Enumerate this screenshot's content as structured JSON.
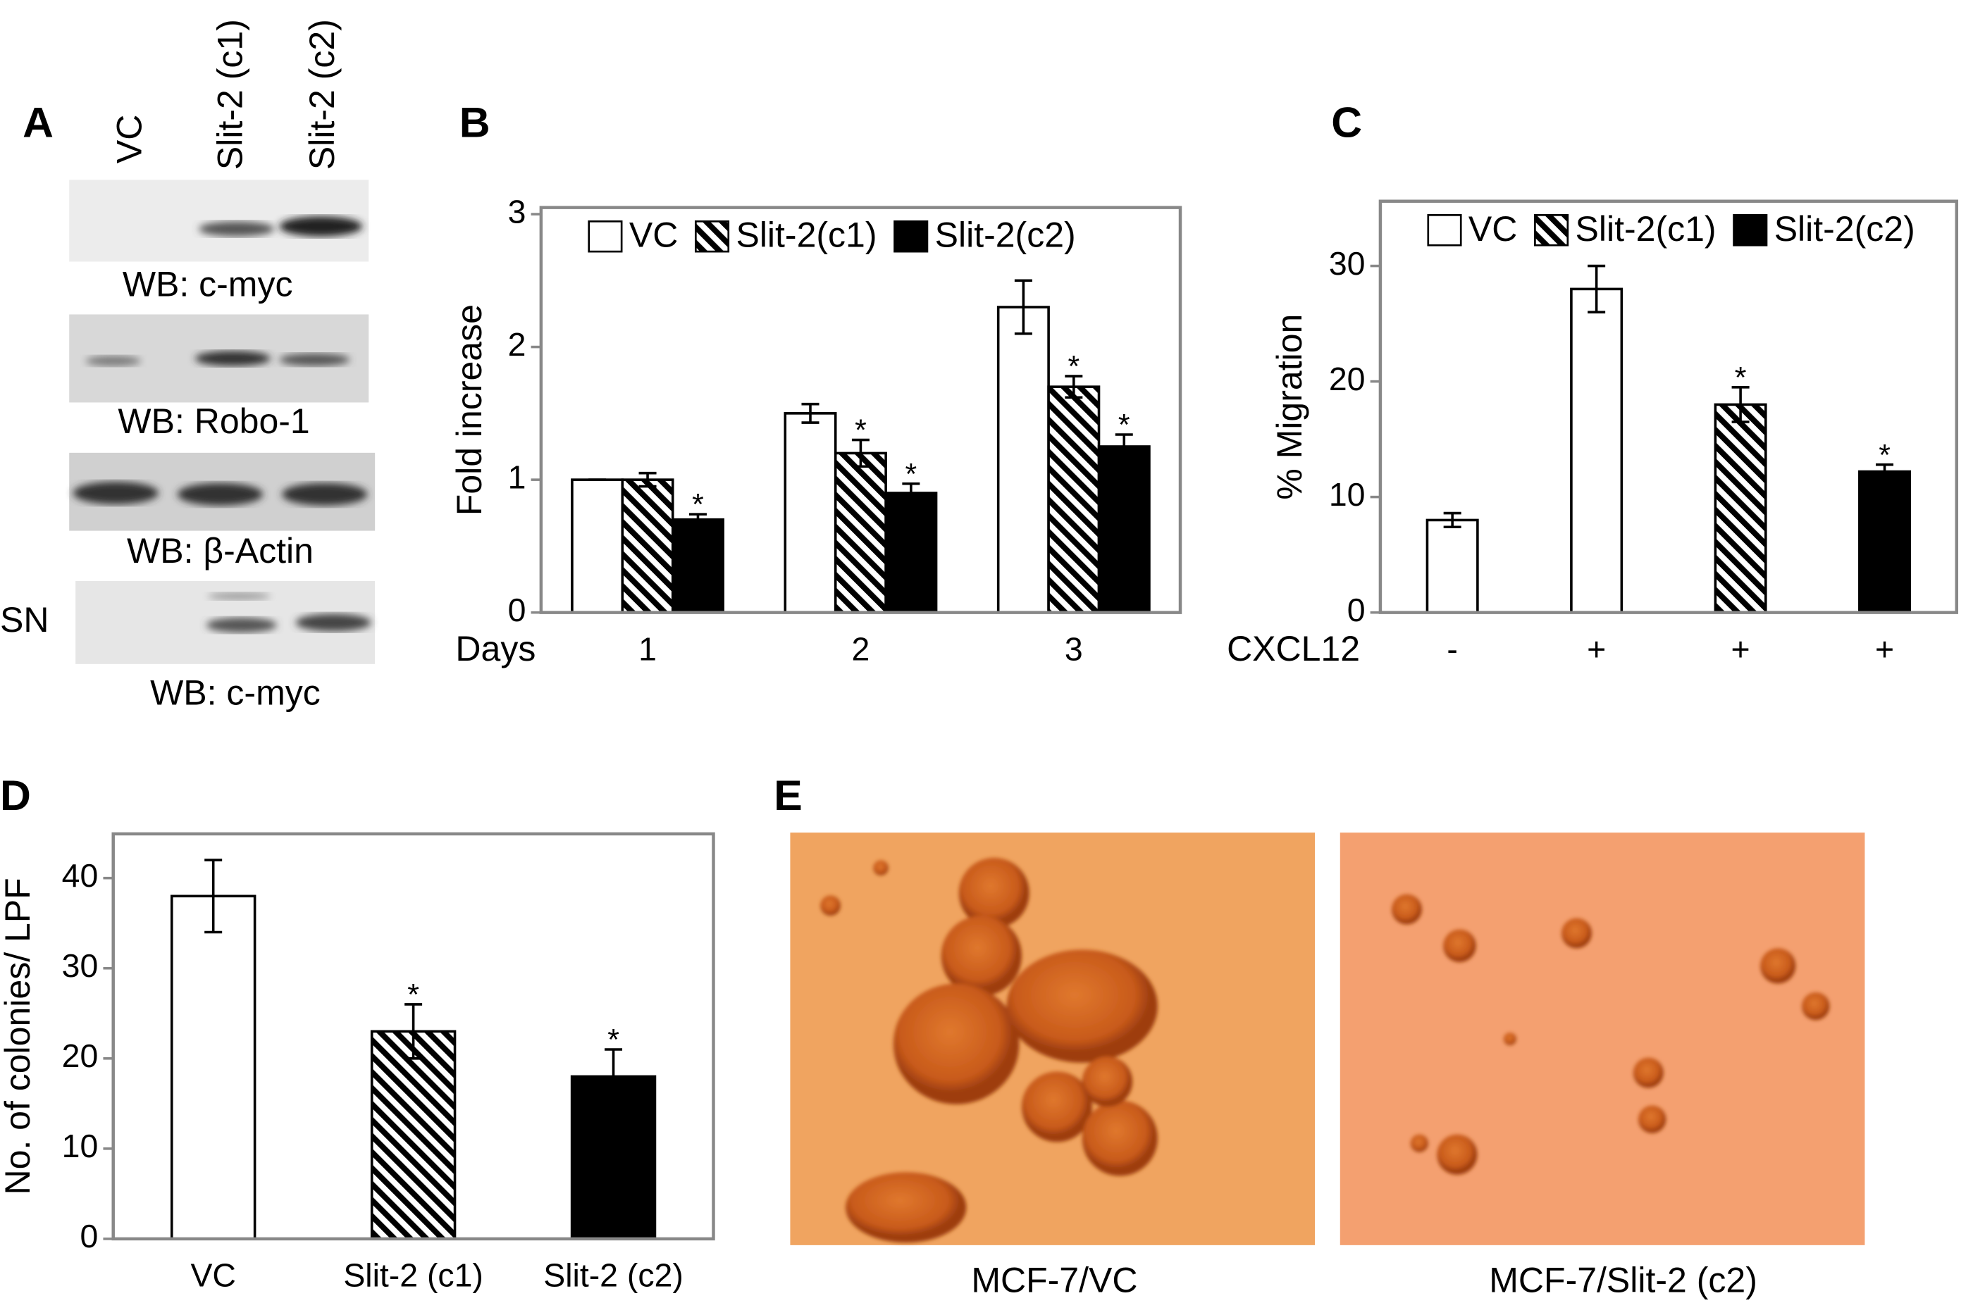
{
  "panel_labels": [
    "A",
    "B",
    "C",
    "D",
    "E"
  ],
  "blots": {
    "lanes": [
      "VC",
      "Slit-2 (c1)",
      "Slit-2 (c2)"
    ],
    "row_label": "SN",
    "captions": [
      "WB: c-myc",
      "WB: Robo-1",
      "WB: β-Actin",
      "WB: c-myc"
    ]
  },
  "photos": {
    "captions": [
      "MCF-7/VC",
      "MCF-7/Slit-2 (c2)"
    ]
  },
  "chart_data": [
    {
      "type": "bar",
      "ylabel": "Fold increase",
      "xlabel": "Days",
      "categories": [
        "1",
        "2",
        "3"
      ],
      "ylim": [
        0,
        3.05
      ],
      "yticks": [
        0,
        1,
        2,
        3
      ],
      "legend": "top",
      "series": [
        {
          "name": "VC",
          "color": "#ffffff",
          "pattern": "solid",
          "values": [
            1,
            1.5,
            2.3
          ],
          "errors": [
            0,
            0.07,
            0.2
          ]
        },
        {
          "name": "Slit-2(c1)",
          "color": "#ffffff",
          "pattern": "hatch",
          "values": [
            1,
            1.2,
            1.7
          ],
          "errors": [
            0.05,
            0.1,
            0.08
          ],
          "labels": [
            null,
            "*",
            "*"
          ]
        },
        {
          "name": "Slit-2(c2)",
          "color": "#000000",
          "pattern": "solid",
          "values": [
            0.7,
            0.9,
            1.25
          ],
          "errors": [
            0.04,
            0.07,
            0.09
          ],
          "labels": [
            "*",
            "*",
            "*"
          ]
        }
      ]
    },
    {
      "type": "bar",
      "ylabel": "% Migration",
      "xlabel": "CXCL12",
      "categories": [
        "-",
        "+",
        "+",
        "+"
      ],
      "ylim": [
        0,
        35.6
      ],
      "yticks": [
        0,
        10,
        20,
        30
      ],
      "legend": "top",
      "series": [
        {
          "name": "VC",
          "color": "#ffffff",
          "pattern": "solid",
          "values": [
            8,
            28,
            null,
            null
          ],
          "errors": [
            0.6,
            2,
            null,
            null
          ]
        },
        {
          "name": "Slit-2(c1)",
          "color": "#ffffff",
          "pattern": "hatch",
          "values": [
            null,
            null,
            18,
            null
          ],
          "errors": [
            null,
            null,
            1.5,
            null
          ],
          "labels": [
            null,
            null,
            "*",
            null
          ]
        },
        {
          "name": "Slit-2(c2)",
          "color": "#000000",
          "pattern": "solid",
          "values": [
            null,
            null,
            null,
            12.2
          ],
          "errors": [
            null,
            null,
            null,
            0.6
          ],
          "labels": [
            null,
            null,
            null,
            "*"
          ]
        }
      ]
    },
    {
      "type": "bar",
      "ylabel": "No. of colonies/ LPF",
      "categories": [
        "VC",
        "Slit-2 (c1)",
        "Slit-2 (c2)"
      ],
      "ylim": [
        0,
        44.9
      ],
      "yticks": [
        0,
        10,
        20,
        30,
        40
      ],
      "values": [
        38,
        23,
        18
      ],
      "errors": [
        4,
        3,
        3
      ],
      "labels": [
        null,
        "*",
        "*"
      ],
      "colors": [
        "#ffffff",
        "#ffffff",
        "#000000"
      ],
      "patterns": [
        "solid",
        "hatch",
        "solid"
      ]
    }
  ]
}
